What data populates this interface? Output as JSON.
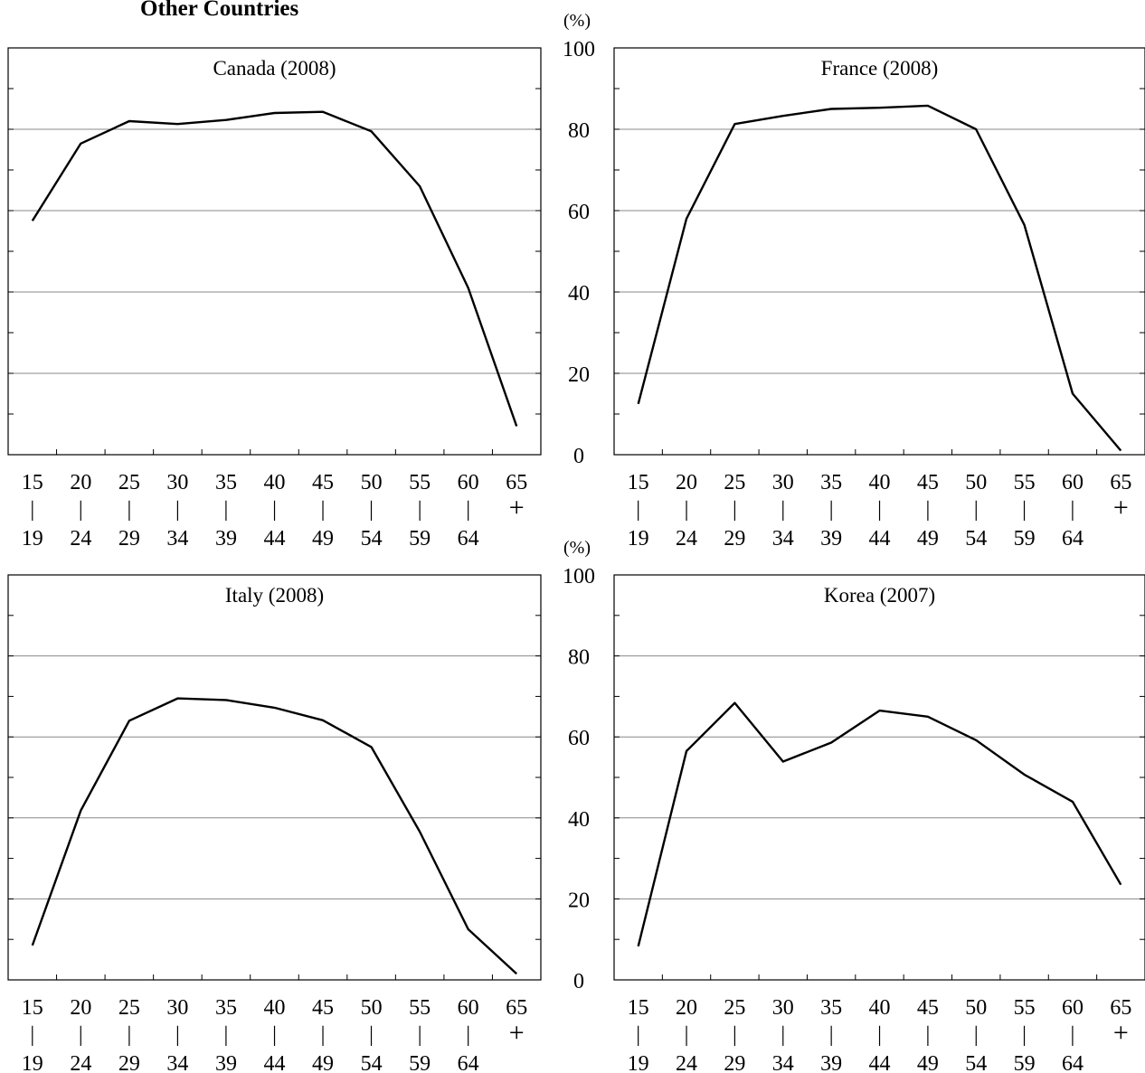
{
  "figure_title": "Other Countries",
  "chart_data": [
    {
      "type": "line",
      "title": "Canada (2008)",
      "unit_label": "",
      "ylim": [
        0,
        100
      ],
      "yticks": [],
      "ygrid": [
        20,
        40,
        60,
        80
      ],
      "categories": [
        {
          "top": "15",
          "sep": "|",
          "bottom": "19"
        },
        {
          "top": "20",
          "sep": "|",
          "bottom": "24"
        },
        {
          "top": "25",
          "sep": "|",
          "bottom": "29"
        },
        {
          "top": "30",
          "sep": "|",
          "bottom": "34"
        },
        {
          "top": "35",
          "sep": "|",
          "bottom": "39"
        },
        {
          "top": "40",
          "sep": "|",
          "bottom": "44"
        },
        {
          "top": "45",
          "sep": "|",
          "bottom": "49"
        },
        {
          "top": "50",
          "sep": "|",
          "bottom": "54"
        },
        {
          "top": "55",
          "sep": "|",
          "bottom": "59"
        },
        {
          "top": "60",
          "sep": "|",
          "bottom": "64"
        },
        {
          "top": "65",
          "sep": "+",
          "bottom": ""
        }
      ],
      "values": [
        57.5,
        76.5,
        82,
        81.3,
        82.3,
        84,
        84.3,
        79.5,
        66,
        41,
        7
      ],
      "color": "#000000",
      "grid_color": "#888888"
    },
    {
      "type": "line",
      "title": "France (2008)",
      "unit_label": "(%)",
      "ylim": [
        0,
        100
      ],
      "yticks": [
        0,
        20,
        40,
        60,
        80,
        100
      ],
      "ygrid": [
        20,
        40,
        60,
        80
      ],
      "categories": [
        {
          "top": "15",
          "sep": "|",
          "bottom": "19"
        },
        {
          "top": "20",
          "sep": "|",
          "bottom": "24"
        },
        {
          "top": "25",
          "sep": "|",
          "bottom": "29"
        },
        {
          "top": "30",
          "sep": "|",
          "bottom": "34"
        },
        {
          "top": "35",
          "sep": "|",
          "bottom": "39"
        },
        {
          "top": "40",
          "sep": "|",
          "bottom": "44"
        },
        {
          "top": "45",
          "sep": "|",
          "bottom": "49"
        },
        {
          "top": "50",
          "sep": "|",
          "bottom": "54"
        },
        {
          "top": "55",
          "sep": "|",
          "bottom": "59"
        },
        {
          "top": "60",
          "sep": "|",
          "bottom": "64"
        },
        {
          "top": "65",
          "sep": "+",
          "bottom": ""
        }
      ],
      "values": [
        12.5,
        58,
        81.3,
        83.3,
        85,
        85.3,
        85.8,
        80,
        56.5,
        15,
        1
      ],
      "color": "#000000",
      "grid_color": "#888888"
    },
    {
      "type": "line",
      "title": "Italy (2008)",
      "unit_label": "",
      "ylim": [
        0,
        100
      ],
      "yticks": [],
      "ygrid": [
        20,
        40,
        60,
        80
      ],
      "categories": [
        {
          "top": "15",
          "sep": "|",
          "bottom": "19"
        },
        {
          "top": "20",
          "sep": "|",
          "bottom": "24"
        },
        {
          "top": "25",
          "sep": "|",
          "bottom": "29"
        },
        {
          "top": "30",
          "sep": "|",
          "bottom": "34"
        },
        {
          "top": "35",
          "sep": "|",
          "bottom": "39"
        },
        {
          "top": "40",
          "sep": "|",
          "bottom": "44"
        },
        {
          "top": "45",
          "sep": "|",
          "bottom": "49"
        },
        {
          "top": "50",
          "sep": "|",
          "bottom": "54"
        },
        {
          "top": "55",
          "sep": "|",
          "bottom": "59"
        },
        {
          "top": "60",
          "sep": "|",
          "bottom": "64"
        },
        {
          "top": "65",
          "sep": "+",
          "bottom": ""
        }
      ],
      "values": [
        8.5,
        41.8,
        64,
        69.5,
        69.1,
        67.2,
        64.1,
        57.5,
        36.6,
        12.5,
        1.5
      ],
      "color": "#000000",
      "grid_color": "#888888"
    },
    {
      "type": "line",
      "title": "Korea (2007)",
      "unit_label": "(%)",
      "ylim": [
        0,
        100
      ],
      "yticks": [
        0,
        20,
        40,
        60,
        80,
        100
      ],
      "ygrid": [
        20,
        40,
        60,
        80
      ],
      "categories": [
        {
          "top": "15",
          "sep": "|",
          "bottom": "19"
        },
        {
          "top": "20",
          "sep": "|",
          "bottom": "24"
        },
        {
          "top": "25",
          "sep": "|",
          "bottom": "29"
        },
        {
          "top": "30",
          "sep": "|",
          "bottom": "34"
        },
        {
          "top": "35",
          "sep": "|",
          "bottom": "39"
        },
        {
          "top": "40",
          "sep": "|",
          "bottom": "44"
        },
        {
          "top": "45",
          "sep": "|",
          "bottom": "49"
        },
        {
          "top": "50",
          "sep": "|",
          "bottom": "54"
        },
        {
          "top": "55",
          "sep": "|",
          "bottom": "59"
        },
        {
          "top": "60",
          "sep": "|",
          "bottom": "64"
        },
        {
          "top": "65",
          "sep": "+",
          "bottom": ""
        }
      ],
      "values": [
        8.3,
        56.5,
        68.4,
        53.9,
        58.6,
        66.5,
        65,
        59.2,
        50.7,
        44,
        23.5
      ],
      "color": "#000000",
      "grid_color": "#888888"
    }
  ]
}
